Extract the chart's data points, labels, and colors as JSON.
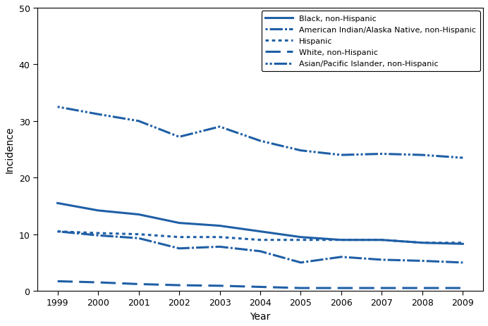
{
  "years": [
    1999,
    2000,
    2001,
    2002,
    2003,
    2004,
    2005,
    2006,
    2007,
    2008,
    2009
  ],
  "black_non_hispanic": [
    15.5,
    14.2,
    13.5,
    12.0,
    11.5,
    10.5,
    9.5,
    9.0,
    9.0,
    8.5,
    8.3
  ],
  "american_indian": [
    10.5,
    9.8,
    9.3,
    7.5,
    7.8,
    7.0,
    5.0,
    6.0,
    5.5,
    5.3,
    5.0
  ],
  "hispanic": [
    10.5,
    10.2,
    10.0,
    9.5,
    9.5,
    9.0,
    9.0,
    9.0,
    9.0,
    8.5,
    8.5
  ],
  "white_non_hispanic": [
    1.7,
    1.5,
    1.2,
    1.0,
    0.9,
    0.7,
    0.5,
    0.5,
    0.5,
    0.5,
    0.5
  ],
  "asian_pacific_islander": [
    32.5,
    31.2,
    30.0,
    27.2,
    29.0,
    26.5,
    24.8,
    24.0,
    24.2,
    24.0,
    23.5
  ],
  "color": "#1f5fa6",
  "xlabel": "Year",
  "ylabel": "Incidence",
  "ylim": [
    0,
    50
  ],
  "yticks": [
    0,
    10,
    20,
    30,
    40,
    50
  ],
  "legend_labels": [
    "Black, non-Hispanic",
    "American Indian/Alaska Native, non-Hispanic",
    "Hispanic",
    "White, non-Hispanic",
    "Asian/Pacific Islander, non-Hispanic"
  ]
}
